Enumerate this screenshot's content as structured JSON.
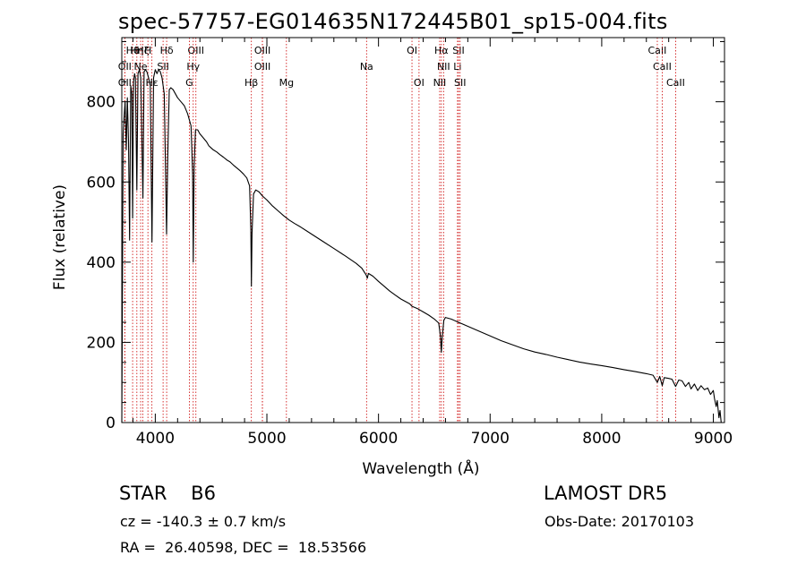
{
  "header": {
    "title": "spec-57757-EG014635N172445B01_sp15-004.fits"
  },
  "footer": {
    "class_label": "STAR    B6",
    "survey_label": "LAMOST DR5",
    "cz_text": "cz = -140.3 ± 0.7 km/s",
    "obs_date_text": "Obs-Date: 20170103",
    "radec_text": "RA =  26.40598, DEC =  18.53566"
  },
  "colors": {
    "spectrum": "#000000",
    "line_markers": "#cc0000",
    "axes": "#000000"
  },
  "chart_data": {
    "type": "line",
    "title": "spec-57757-EG014635N172445B01_sp15-004.fits",
    "xlabel": "Wavelength (Å)",
    "ylabel": "Flux (relative)",
    "xlim": [
      3700,
      9100
    ],
    "ylim": [
      0,
      960
    ],
    "x_ticks": [
      4000,
      5000,
      6000,
      7000,
      8000,
      9000
    ],
    "y_ticks": [
      0,
      200,
      400,
      600,
      800
    ],
    "grid": false,
    "series": [
      {
        "points": [
          [
            3700,
            0
          ],
          [
            3705,
            280
          ],
          [
            3712,
            720
          ],
          [
            3720,
            760
          ],
          [
            3730,
            800
          ],
          [
            3740,
            680
          ],
          [
            3750,
            810
          ],
          [
            3760,
            700
          ],
          [
            3770,
            455
          ],
          [
            3780,
            840
          ],
          [
            3790,
            820
          ],
          [
            3797,
            510
          ],
          [
            3805,
            850
          ],
          [
            3815,
            870
          ],
          [
            3822,
            860
          ],
          [
            3835,
            580
          ],
          [
            3845,
            870
          ],
          [
            3858,
            880
          ],
          [
            3870,
            860
          ],
          [
            3889,
            560
          ],
          [
            3900,
            875
          ],
          [
            3912,
            880
          ],
          [
            3925,
            875
          ],
          [
            3940,
            860
          ],
          [
            3955,
            840
          ],
          [
            3970,
            450
          ],
          [
            3985,
            860
          ],
          [
            4000,
            880
          ],
          [
            4015,
            870
          ],
          [
            4030,
            880
          ],
          [
            4045,
            875
          ],
          [
            4060,
            860
          ],
          [
            4080,
            820
          ],
          [
            4090,
            660
          ],
          [
            4101,
            470
          ],
          [
            4112,
            660
          ],
          [
            4125,
            830
          ],
          [
            4140,
            835
          ],
          [
            4160,
            830
          ],
          [
            4180,
            820
          ],
          [
            4200,
            810
          ],
          [
            4230,
            800
          ],
          [
            4260,
            790
          ],
          [
            4290,
            770
          ],
          [
            4320,
            740
          ],
          [
            4335,
            620
          ],
          [
            4340,
            400
          ],
          [
            4348,
            640
          ],
          [
            4360,
            730
          ],
          [
            4380,
            730
          ],
          [
            4400,
            720
          ],
          [
            4430,
            710
          ],
          [
            4460,
            700
          ],
          [
            4480,
            690
          ],
          [
            4500,
            685
          ],
          [
            4520,
            680
          ],
          [
            4550,
            675
          ],
          [
            4580,
            668
          ],
          [
            4610,
            662
          ],
          [
            4640,
            655
          ],
          [
            4670,
            650
          ],
          [
            4700,
            642
          ],
          [
            4730,
            635
          ],
          [
            4760,
            628
          ],
          [
            4790,
            620
          ],
          [
            4820,
            610
          ],
          [
            4845,
            590
          ],
          [
            4856,
            480
          ],
          [
            4861,
            340
          ],
          [
            4867,
            470
          ],
          [
            4880,
            570
          ],
          [
            4900,
            580
          ],
          [
            4930,
            575
          ],
          [
            4960,
            565
          ],
          [
            5000,
            555
          ],
          [
            5050,
            540
          ],
          [
            5100,
            528
          ],
          [
            5150,
            516
          ],
          [
            5200,
            505
          ],
          [
            5250,
            496
          ],
          [
            5300,
            488
          ],
          [
            5400,
            470
          ],
          [
            5500,
            452
          ],
          [
            5600,
            434
          ],
          [
            5700,
            416
          ],
          [
            5800,
            397
          ],
          [
            5850,
            385
          ],
          [
            5890,
            368
          ],
          [
            5900,
            360
          ],
          [
            5910,
            372
          ],
          [
            5950,
            365
          ],
          [
            6000,
            352
          ],
          [
            6050,
            340
          ],
          [
            6100,
            328
          ],
          [
            6150,
            318
          ],
          [
            6200,
            308
          ],
          [
            6280,
            296
          ],
          [
            6300,
            290
          ],
          [
            6350,
            284
          ],
          [
            6400,
            276
          ],
          [
            6450,
            268
          ],
          [
            6500,
            258
          ],
          [
            6540,
            248
          ],
          [
            6555,
            215
          ],
          [
            6563,
            175
          ],
          [
            6570,
            210
          ],
          [
            6585,
            255
          ],
          [
            6600,
            262
          ],
          [
            6650,
            258
          ],
          [
            6700,
            252
          ],
          [
            6750,
            246
          ],
          [
            6800,
            240
          ],
          [
            6900,
            228
          ],
          [
            7000,
            216
          ],
          [
            7100,
            204
          ],
          [
            7200,
            194
          ],
          [
            7300,
            184
          ],
          [
            7400,
            176
          ],
          [
            7500,
            170
          ],
          [
            7600,
            163
          ],
          [
            7700,
            157
          ],
          [
            7800,
            151
          ],
          [
            7900,
            146
          ],
          [
            8000,
            142
          ],
          [
            8100,
            137
          ],
          [
            8200,
            132
          ],
          [
            8300,
            127
          ],
          [
            8400,
            122
          ],
          [
            8460,
            118
          ],
          [
            8498,
            100
          ],
          [
            8520,
            115
          ],
          [
            8542,
            92
          ],
          [
            8560,
            112
          ],
          [
            8600,
            110
          ],
          [
            8630,
            108
          ],
          [
            8662,
            90
          ],
          [
            8690,
            106
          ],
          [
            8720,
            104
          ],
          [
            8750,
            90
          ],
          [
            8780,
            100
          ],
          [
            8800,
            84
          ],
          [
            8830,
            96
          ],
          [
            8860,
            80
          ],
          [
            8890,
            92
          ],
          [
            8920,
            82
          ],
          [
            8950,
            86
          ],
          [
            8975,
            70
          ],
          [
            9000,
            80
          ],
          [
            9010,
            60
          ],
          [
            9025,
            40
          ],
          [
            9035,
            55
          ],
          [
            9050,
            12
          ],
          [
            9060,
            30
          ],
          [
            9070,
            0
          ]
        ]
      }
    ],
    "line_markers": [
      {
        "label": "Hθ",
        "x": 3797,
        "row": 0
      },
      {
        "label": "Hη",
        "x": 3835,
        "row": 0
      },
      {
        "label": "Hζ",
        "x": 3889,
        "row": 0
      },
      {
        "label": "H",
        "x": 3934,
        "row": 0
      },
      {
        "label": "Hδ",
        "x": 4102,
        "row": 0
      },
      {
        "label": "OIII",
        "x": 4364,
        "row": 0
      },
      {
        "label": "OIII",
        "x": 4960,
        "row": 0
      },
      {
        "label": "OI",
        "x": 6300,
        "row": 0
      },
      {
        "label": "Hα",
        "x": 6563,
        "row": 0
      },
      {
        "label": "SII",
        "x": 6717,
        "row": 0
      },
      {
        "label": "CaII",
        "x": 8498,
        "row": 0
      },
      {
        "label": "OII",
        "x": 3727,
        "row": 1
      },
      {
        "label": "Ne",
        "x": 3869,
        "row": 1
      },
      {
        "label": "SII",
        "x": 4070,
        "row": 1
      },
      {
        "label": "Hγ",
        "x": 4340,
        "row": 1
      },
      {
        "label": "OIII",
        "x": 4960,
        "row": 1
      },
      {
        "label": "Na",
        "x": 5893,
        "row": 1
      },
      {
        "label": "NII",
        "x": 6583,
        "row": 1
      },
      {
        "label": "Li",
        "x": 6708,
        "row": 1
      },
      {
        "label": "CaII",
        "x": 8542,
        "row": 1
      },
      {
        "label": "OII",
        "x": 3727,
        "row": 2
      },
      {
        "label": "Hε",
        "x": 3970,
        "row": 2
      },
      {
        "label": "G",
        "x": 4305,
        "row": 2
      },
      {
        "label": "Hβ",
        "x": 4861,
        "row": 2
      },
      {
        "label": "Mg",
        "x": 5175,
        "row": 2
      },
      {
        "label": "OI",
        "x": 6363,
        "row": 2
      },
      {
        "label": "NII",
        "x": 6548,
        "row": 2
      },
      {
        "label": "SII",
        "x": 6731,
        "row": 2
      },
      {
        "label": "CaII",
        "x": 8662,
        "row": 2
      }
    ]
  }
}
